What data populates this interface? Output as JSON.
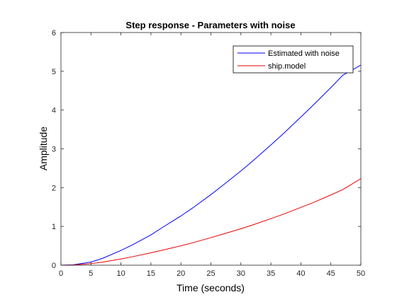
{
  "chart_data": {
    "type": "line",
    "title": "Step response - Parameters with noise",
    "xlabel": "Time (seconds)",
    "ylabel": "Amplitude",
    "xlim": [
      0,
      50
    ],
    "ylim": [
      0,
      6
    ],
    "xticks": [
      0,
      5,
      10,
      15,
      20,
      25,
      30,
      35,
      40,
      45,
      50
    ],
    "yticks": [
      0,
      1,
      2,
      3,
      4,
      5,
      6
    ],
    "grid": false,
    "legend_position": "top-right",
    "x": [
      0,
      2,
      5,
      7,
      10,
      12,
      15,
      17,
      20,
      22,
      25,
      27,
      30,
      32,
      35,
      37,
      40,
      42,
      45,
      47,
      50
    ],
    "series": [
      {
        "name": "Estimated with noise",
        "color": "#0000ff",
        "values": [
          0,
          0.01,
          0.08,
          0.18,
          0.38,
          0.53,
          0.78,
          0.98,
          1.27,
          1.48,
          1.82,
          2.06,
          2.43,
          2.69,
          3.1,
          3.38,
          3.82,
          4.12,
          4.58,
          4.9,
          5.16
        ]
      },
      {
        "name": "ship.model",
        "color": "#e60000",
        "values": [
          0,
          0.005,
          0.04,
          0.08,
          0.16,
          0.22,
          0.32,
          0.39,
          0.5,
          0.58,
          0.71,
          0.8,
          0.94,
          1.04,
          1.2,
          1.31,
          1.49,
          1.61,
          1.81,
          1.95,
          2.23
        ]
      }
    ]
  }
}
